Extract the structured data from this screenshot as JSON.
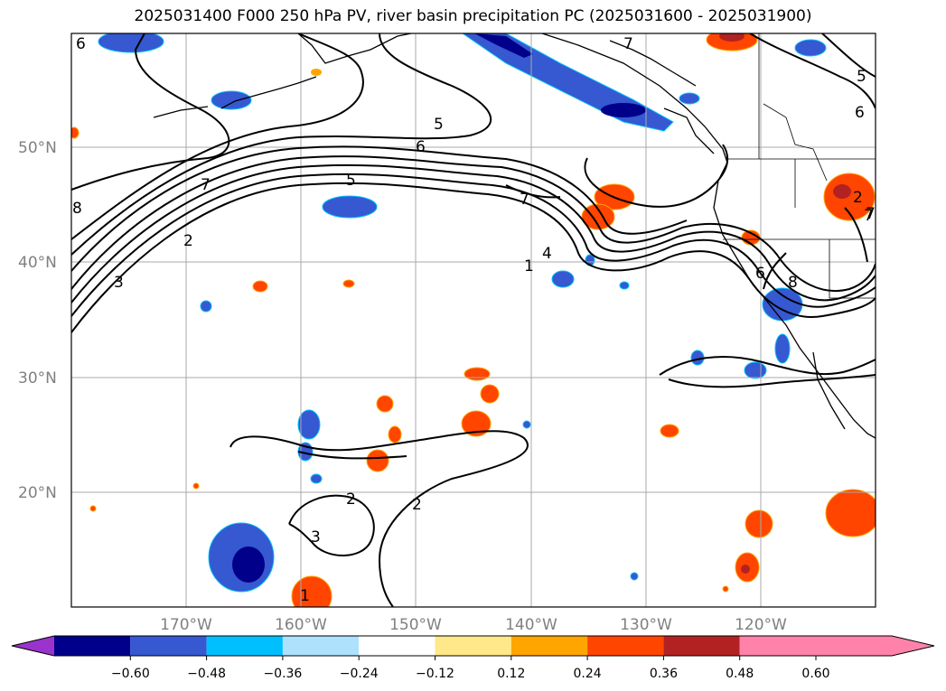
{
  "title": "2025031400 F000 250 hPa PV, river basin precipitation PC (2025031600 - 2025031900)",
  "lat_labels": [
    "50°N",
    "40°N",
    "30°N",
    "20°N"
  ],
  "lon_labels": [
    "170°W",
    "160°W",
    "150°W",
    "140°W",
    "130°W",
    "120°W"
  ],
  "colorbar": {
    "labels": [
      "−0.60",
      "−0.48",
      "−0.36",
      "−0.24",
      "−0.12",
      "0.12",
      "0.24",
      "0.36",
      "0.48",
      "0.60"
    ],
    "colors": [
      "#9a33cc",
      "#00008b",
      "#3658d1",
      "#00bfff",
      "#aee1fb",
      "#ffffff",
      "#ffe88a",
      "#ffa500",
      "#ff4500",
      "#b22222",
      "#ff82ab",
      "#ff82ab"
    ]
  },
  "contour_labels": [
    "6",
    "7",
    "5",
    "6",
    "7",
    "5",
    "2",
    "3",
    "8",
    "7",
    "4",
    "1",
    "2",
    "3",
    "2",
    "1",
    "8",
    "6",
    "7",
    "5",
    "6",
    "2",
    "7"
  ],
  "colors": {
    "positive_strong": "#ff4500",
    "positive_mid": "#ffa500",
    "negative_strong": "#00008b",
    "negative_mid": "#3658d1"
  }
}
